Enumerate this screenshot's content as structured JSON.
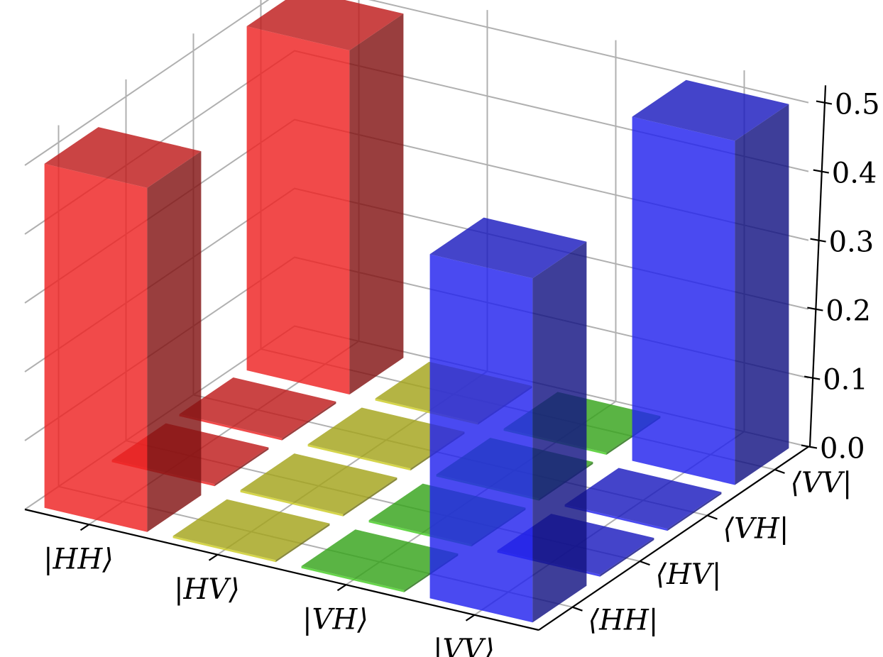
{
  "chart_data": {
    "type": "bar3d",
    "title": "",
    "x_categories": [
      "|HH⟩",
      "|HV⟩",
      "|VH⟩",
      "|VV⟩"
    ],
    "y_categories": [
      "⟨HH|",
      "⟨HV|",
      "⟨VH|",
      "⟨VV|"
    ],
    "z_ticks": [
      "0.0",
      "0.1",
      "0.2",
      "0.3",
      "0.4",
      "0.5"
    ],
    "zlim": [
      0,
      0.5
    ],
    "grid": true,
    "colors": {
      "red": "#ee2222",
      "yellow": "#cccc22",
      "green": "#44cc22",
      "blue": "#2222ee"
    },
    "bars": [
      {
        "x": "|HH⟩",
        "y": "⟨HH|",
        "value": 0.5,
        "color": "red"
      },
      {
        "x": "|HH⟩",
        "y": "⟨HV|",
        "value": 0.0,
        "color": "red"
      },
      {
        "x": "|HH⟩",
        "y": "⟨VH|",
        "value": 0.0,
        "color": "red"
      },
      {
        "x": "|HH⟩",
        "y": "⟨VV|",
        "value": 0.5,
        "color": "red"
      },
      {
        "x": "|HV⟩",
        "y": "⟨HH|",
        "value": 0.0,
        "color": "yellow"
      },
      {
        "x": "|HV⟩",
        "y": "⟨HV|",
        "value": 0.0,
        "color": "yellow"
      },
      {
        "x": "|HV⟩",
        "y": "⟨VH|",
        "value": 0.0,
        "color": "yellow"
      },
      {
        "x": "|HV⟩",
        "y": "⟨VV|",
        "value": 0.0,
        "color": "yellow"
      },
      {
        "x": "|VH⟩",
        "y": "⟨HH|",
        "value": 0.0,
        "color": "green"
      },
      {
        "x": "|VH⟩",
        "y": "⟨HV|",
        "value": 0.0,
        "color": "green"
      },
      {
        "x": "|VH⟩",
        "y": "⟨VH|",
        "value": 0.0,
        "color": "green"
      },
      {
        "x": "|VH⟩",
        "y": "⟨VV|",
        "value": 0.0,
        "color": "green"
      },
      {
        "x": "|VV⟩",
        "y": "⟨HH|",
        "value": 0.5,
        "color": "blue"
      },
      {
        "x": "|VV⟩",
        "y": "⟨HV|",
        "value": 0.0,
        "color": "blue"
      },
      {
        "x": "|VV⟩",
        "y": "⟨VH|",
        "value": 0.0,
        "color": "blue"
      },
      {
        "x": "|VV⟩",
        "y": "⟨VV|",
        "value": 0.5,
        "color": "blue"
      }
    ]
  }
}
